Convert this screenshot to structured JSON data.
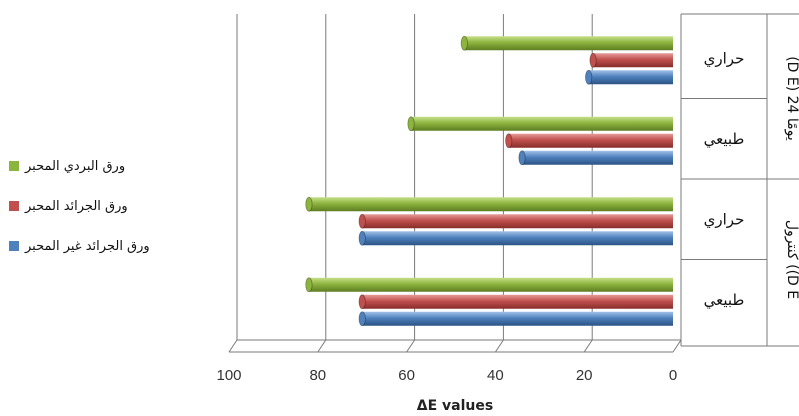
{
  "chart_data": {
    "type": "bar",
    "orientation": "horizontal",
    "x_axis_direction": "reversed",
    "xlabel": "ΔE values",
    "xlim": [
      0,
      100
    ],
    "x_ticks": [
      "0",
      "20",
      "40",
      "60",
      "80",
      "100"
    ],
    "groups": [
      {
        "label": "(D E) 24 يومًا",
        "categories": [
          "حراري",
          "طبيعي"
        ]
      },
      {
        "label": "كنترول ((D E",
        "categories": [
          "حراري",
          "طبيعي"
        ]
      }
    ],
    "categories": [
      "حراري",
      "طبيعي",
      "حراري",
      "طبيعي"
    ],
    "series": [
      {
        "name": "ورق البردي المحبر",
        "color": "#8DB43E",
        "values": [
          47,
          59,
          82,
          82
        ]
      },
      {
        "name": "ورق الجرائد المحبر",
        "color": "#C0504D",
        "values": [
          18,
          37,
          70,
          70
        ]
      },
      {
        "name": "ورق الجرائد غير المحبر",
        "color": "#4F81BD",
        "values": [
          19,
          34,
          70,
          70
        ]
      }
    ],
    "legend_position": "left",
    "grid": true
  }
}
